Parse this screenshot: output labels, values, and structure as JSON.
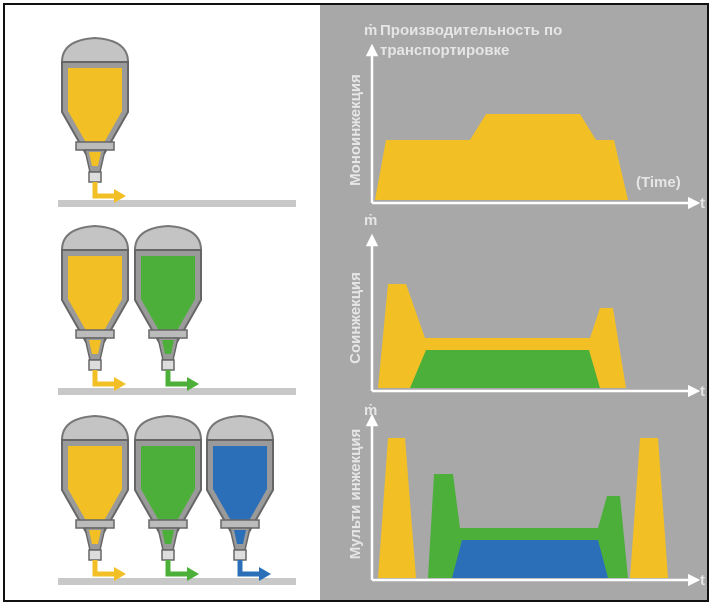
{
  "panels": [
    {
      "y_symbol": "ṁ",
      "title": [
        "Производительность по",
        "транспортировке"
      ],
      "y_label": "Моноинжекция",
      "x_label": "t",
      "x_note": "(Time)"
    },
    {
      "y_symbol": "ṁ",
      "y_label": "Соинжекция",
      "x_label": "t"
    },
    {
      "y_symbol": "ṁ",
      "y_label": "Мульти инжекция",
      "x_label": "t"
    }
  ]
}
